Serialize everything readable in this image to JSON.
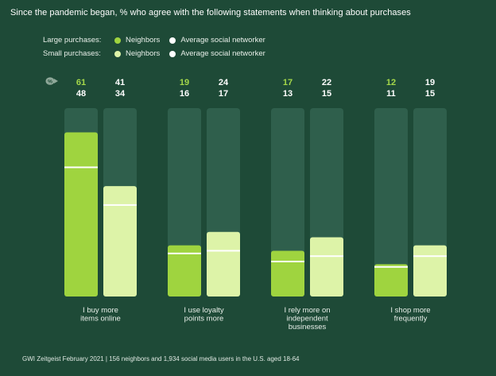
{
  "title": "Since the pandemic began, % who agree with the following statements when thinking about purchases",
  "legend": {
    "large": {
      "label": "Large purchases:",
      "neighbors": "Neighbors",
      "average": "Average social networker"
    },
    "small": {
      "label": "Small purchases:",
      "neighbors": "Neighbors",
      "average": "Average social networker"
    }
  },
  "colors": {
    "background": "#1e4a37",
    "track": "#2f5f4c",
    "neighbors": "#9fd43f",
    "average": "#ddf3a8",
    "marker": "#ffffff",
    "label_green": "#a5d84a"
  },
  "footer": "GWI Zeitgeist February 2021  |  156 neighbors and 1,934 social media users in the U.S. aged 18-64",
  "chart_data": {
    "type": "bar",
    "categories": [
      "I buy more items online",
      "I use loyalty points more",
      "I rely more on independent businesses",
      "I shop more frequently"
    ],
    "category_lines": [
      [
        "I buy more",
        "items online"
      ],
      [
        "I use loyalty",
        "points more"
      ],
      [
        "I rely more on",
        "independent",
        "businesses"
      ],
      [
        "I shop more",
        "frequently"
      ]
    ],
    "series": [
      {
        "name": "Neighbors",
        "group": "Large purchases",
        "values": [
          61,
          19,
          17,
          12
        ]
      },
      {
        "name": "Average social networker",
        "group": "Large purchases",
        "values": [
          41,
          24,
          22,
          19
        ]
      },
      {
        "name": "Neighbors",
        "group": "Small purchases",
        "values": [
          48,
          16,
          13,
          11
        ]
      },
      {
        "name": "Average social networker",
        "group": "Small purchases",
        "values": [
          34,
          17,
          15,
          15
        ]
      }
    ],
    "ylim": [
      0,
      70
    ]
  }
}
